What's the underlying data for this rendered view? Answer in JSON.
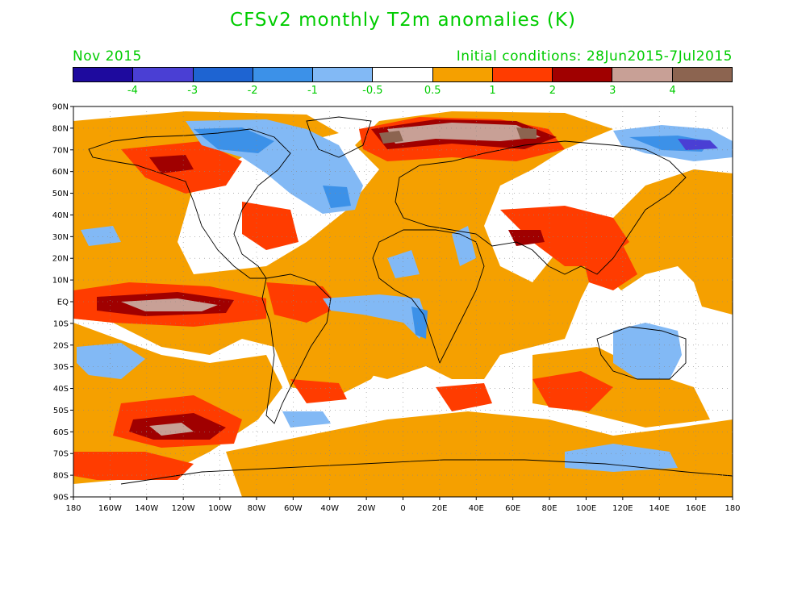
{
  "title": "CFSv2 monthly T2m anomalies (K)",
  "valid_month": "Nov 2015",
  "initial_conditions": "Initial conditions: 28Jun2015-7Jul2015",
  "colorbar": {
    "colors": [
      "#1e0a9e",
      "#4a3fd4",
      "#1e64d2",
      "#3c91e8",
      "#82b9f5",
      "#ffffff",
      "#f5a000",
      "#ff3c00",
      "#a00000",
      "#c8a096",
      "#8c6450"
    ],
    "labels": [
      "-4",
      "-3",
      "-2",
      "-1",
      "-0.5",
      "0.5",
      "1",
      "2",
      "3",
      "4"
    ]
  },
  "axes": {
    "lat_labels": [
      "90N",
      "80N",
      "70N",
      "60N",
      "50N",
      "40N",
      "30N",
      "20N",
      "10N",
      "EQ",
      "10S",
      "20S",
      "30S",
      "40S",
      "50S",
      "60S",
      "70S",
      "80S",
      "90S"
    ],
    "lon_labels": [
      "180",
      "160W",
      "140W",
      "120W",
      "100W",
      "80W",
      "60W",
      "40W",
      "20W",
      "0",
      "20E",
      "40E",
      "60E",
      "80E",
      "100E",
      "120E",
      "140E",
      "160E",
      "180"
    ]
  },
  "colors": {
    "text": "#00cc00",
    "warm_1": "#f5a000",
    "warm_2": "#ff3c00",
    "warm_3": "#a00000",
    "warm_4": "#c8a096",
    "warm_5": "#8c6450",
    "cool_1": "#82b9f5",
    "cool_2": "#3c91e8",
    "cool_3": "#1e64d2",
    "cool_4": "#4a3fd4"
  }
}
